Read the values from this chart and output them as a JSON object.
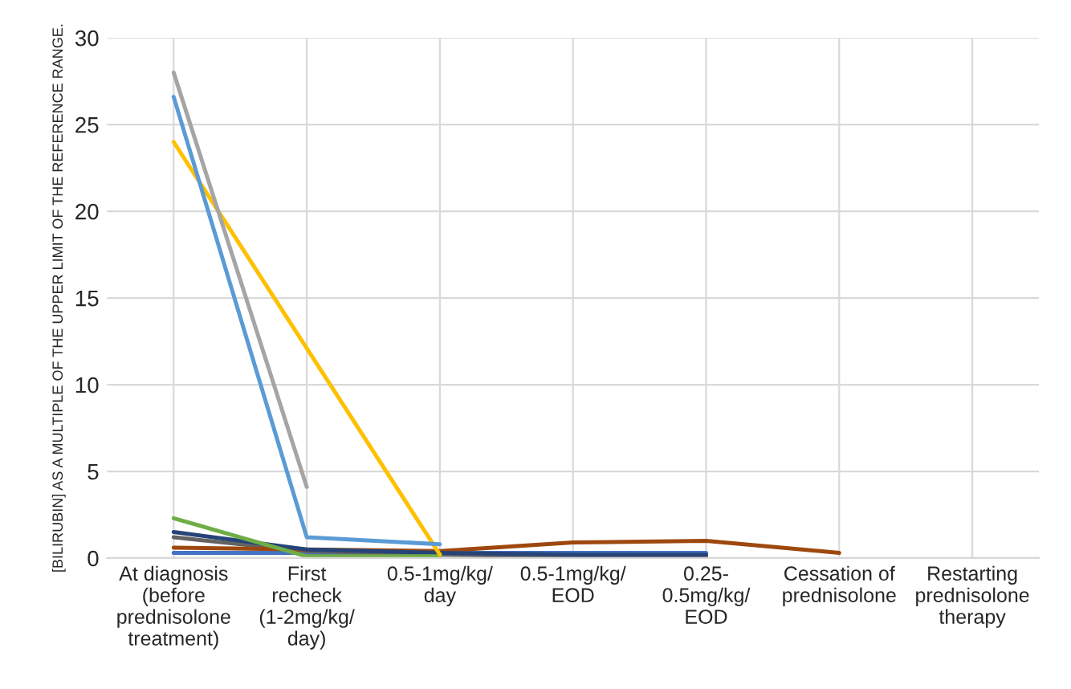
{
  "chart_data": {
    "type": "line",
    "ylabel": "[BILIRUBIN] AS A MULTIPLE OF THE UPPER LIMIT OF THE REFERENCE RANGE.",
    "categories": [
      "At diagnosis\n(before\nprednisolone\ntreatment)",
      "First\nrecheck\n(1-2mg/kg/\nday)",
      "0.5-1mg/kg/\nday",
      "0.5-1mg/kg/\nEOD",
      "0.25-\n0.5mg/kg/\nEOD",
      "Cessation of\nprednisolone",
      "Restarting\nprednisolone\ntherapy"
    ],
    "series": [
      {
        "color": "#4472c4",
        "values": [
          0.3,
          0.3,
          0.3,
          0.3,
          0.3,
          null,
          null
        ]
      },
      {
        "color": "#636363",
        "values": [
          1.2,
          0.4,
          0.2,
          0.1,
          0.1,
          null,
          null
        ]
      },
      {
        "color": "#9e480e",
        "values": [
          0.6,
          0.5,
          0.4,
          0.9,
          1.0,
          0.3,
          null
        ]
      },
      {
        "color": "#264478",
        "values": [
          1.5,
          0.5,
          0.3,
          0.2,
          0.2,
          null,
          null
        ]
      },
      {
        "color": "#70ad47",
        "values": [
          2.3,
          0.1,
          0.1,
          null,
          null,
          null,
          null
        ]
      },
      {
        "color": "#ffc000",
        "values": [
          24,
          null,
          0.2,
          null,
          null,
          null,
          null
        ]
      },
      {
        "color": "#5b9bd5",
        "values": [
          26.6,
          1.2,
          0.8,
          null,
          null,
          null,
          null
        ]
      },
      {
        "color": "#a5a5a5",
        "values": [
          28,
          4.1,
          null,
          null,
          null,
          null,
          null
        ]
      }
    ],
    "ylim": [
      0,
      30
    ],
    "yticks": [
      0,
      5,
      10,
      15,
      20,
      25,
      30
    ],
    "grid": true,
    "legend": false,
    "marker": "none",
    "line_style": "solid"
  }
}
